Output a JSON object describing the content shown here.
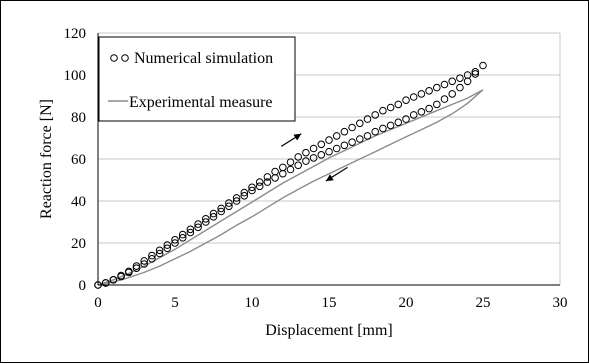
{
  "chart_data": {
    "type": "scatter",
    "xlabel": "Displacement [mm]",
    "ylabel": "Reaction force  [N]",
    "xlim": [
      0,
      30
    ],
    "ylim": [
      0,
      120
    ],
    "xticks": [
      0,
      5,
      10,
      15,
      20,
      25,
      30
    ],
    "yticks": [
      0,
      20,
      40,
      60,
      80,
      100,
      120
    ],
    "grid": "horizontal",
    "legend_position": "top-left",
    "series": [
      {
        "name": "Numerical simulation",
        "marker": "open-circle",
        "color": "#000000",
        "loading_x": [
          0,
          0.5,
          1,
          1.5,
          2,
          2.5,
          3,
          3.5,
          4,
          4.5,
          5,
          5.5,
          6,
          6.5,
          7,
          7.5,
          8,
          8.5,
          9,
          9.5,
          10,
          10.5,
          11,
          11.5,
          12,
          12.5,
          13,
          13.5,
          14,
          14.5,
          15,
          15.5,
          16,
          16.5,
          17,
          17.5,
          18,
          18.5,
          19,
          19.5,
          20,
          20.5,
          21,
          21.5,
          22,
          22.5,
          23,
          23.5,
          24,
          24.5,
          25
        ],
        "loading_y": [
          0,
          1,
          2.5,
          4.5,
          6.5,
          9,
          11.5,
          14,
          16.5,
          19,
          21.5,
          24,
          26.5,
          29,
          31.5,
          34,
          36.5,
          39,
          41.5,
          44,
          46.5,
          49,
          51.5,
          54,
          56,
          58.5,
          61,
          63,
          65,
          67,
          69,
          71,
          73,
          75,
          77,
          79,
          81,
          83,
          84.5,
          86,
          88,
          89.5,
          91,
          92.5,
          94,
          95.5,
          97,
          98.5,
          100,
          101.5,
          104.5
        ],
        "unloading_x": [
          24.5,
          24,
          23.5,
          23,
          22.5,
          22,
          21.5,
          21,
          20.5,
          20,
          19.5,
          19,
          18.5,
          18,
          17.5,
          17,
          16.5,
          16,
          15.5,
          15,
          14.5,
          14,
          13.5,
          13,
          12.5,
          12,
          11.5,
          11,
          10.5,
          10,
          9.5,
          9,
          8.5,
          8,
          7.5,
          7,
          6.5,
          6,
          5.5,
          5,
          4.5,
          4,
          3.5,
          3,
          2.5,
          2,
          1.5,
          1,
          0.5,
          0
        ],
        "unloading_y": [
          100.5,
          97,
          94,
          91,
          88.5,
          86,
          84,
          82.5,
          81,
          79,
          77.5,
          76,
          74.5,
          73,
          71,
          69.5,
          68,
          66.5,
          65,
          63.5,
          62,
          60.5,
          59,
          57,
          55,
          53,
          51,
          49,
          47,
          45,
          42.5,
          40,
          37.5,
          35,
          32.5,
          30,
          27.5,
          25,
          22.5,
          20,
          17.5,
          15,
          12.5,
          10,
          8,
          6,
          4,
          2.5,
          1,
          0
        ]
      },
      {
        "name": "Experimental measure",
        "line": "solid",
        "color": "#8c8c8c",
        "loading_x": [
          0,
          1,
          2,
          3,
          4,
          5,
          6,
          7,
          8,
          9,
          10,
          11,
          12,
          13,
          14,
          15,
          16,
          17,
          18,
          19,
          20,
          21,
          22,
          23,
          24,
          25
        ],
        "loading_y": [
          0,
          2.5,
          5.5,
          9,
          13,
          17,
          21.5,
          26,
          30.5,
          35,
          39.5,
          44,
          48.5,
          52.5,
          56.5,
          60.5,
          64,
          67.5,
          71,
          74,
          77,
          80,
          83,
          86,
          89,
          93
        ],
        "unloading_x": [
          25,
          24,
          23,
          22,
          21,
          20,
          19,
          18,
          17,
          16,
          15,
          14,
          13,
          12,
          11,
          10,
          9,
          8,
          7,
          6,
          5,
          4,
          3,
          2,
          1,
          0
        ],
        "unloading_y": [
          93,
          86.5,
          81.5,
          77.5,
          74,
          70.5,
          67,
          63.5,
          60,
          56.5,
          53,
          49.5,
          45.5,
          41.5,
          37,
          32.5,
          28.5,
          24,
          20,
          16,
          12.5,
          9,
          6,
          3.5,
          1.5,
          0
        ]
      }
    ],
    "annotations": [
      {
        "type": "arrow",
        "label": "loading-direction",
        "from": [
          11.9,
          66
        ],
        "to": [
          13.2,
          72
        ]
      },
      {
        "type": "arrow",
        "label": "unloading-direction",
        "from": [
          16.2,
          56
        ],
        "to": [
          14.8,
          49.5
        ]
      }
    ]
  }
}
